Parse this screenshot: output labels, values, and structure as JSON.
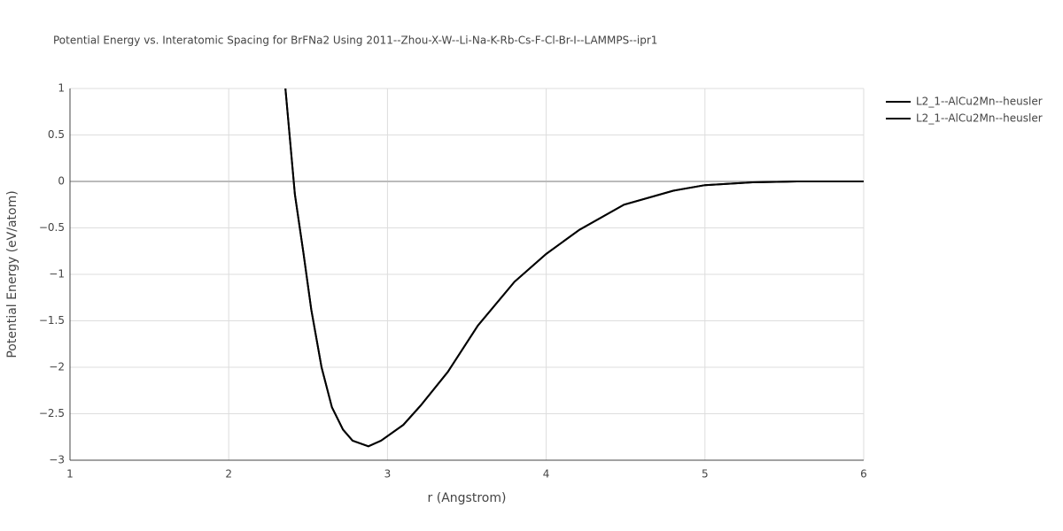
{
  "chart_data": {
    "type": "line",
    "title": "Potential Energy vs. Interatomic Spacing for BrFNa2 Using 2011--Zhou-X-W--Li-Na-K-Rb-Cs-F-Cl-Br-I--LAMMPS--ipr1",
    "x_label": "r (Angstrom)",
    "y_label": "Potential Energy (eV/atom)",
    "x": [
      2.357,
      2.417,
      2.47,
      2.52,
      2.585,
      2.65,
      2.72,
      2.78,
      2.88,
      2.96,
      3.1,
      3.21,
      3.38,
      3.57,
      3.8,
      4.0,
      4.21,
      4.49,
      4.8,
      5.0,
      5.3,
      5.58,
      6.0
    ],
    "series": [
      {
        "name": "L2_1--AlCu2Mn--heusler",
        "color": "#000000",
        "values": [
          1,
          -0.14,
          -0.76,
          -1.38,
          -2.0,
          -2.43,
          -2.67,
          -2.79,
          -2.85,
          -2.79,
          -2.62,
          -2.41,
          -2.05,
          -1.55,
          -1.08,
          -0.78,
          -0.52,
          -0.25,
          -0.1,
          -0.04,
          -0.01,
          0,
          0
        ]
      },
      {
        "name": "L2_1--AlCu2Mn--heusler",
        "color": "#000000",
        "values": [
          1,
          -0.14,
          -0.76,
          -1.38,
          -2.0,
          -2.43,
          -2.67,
          -2.79,
          -2.85,
          -2.79,
          -2.62,
          -2.41,
          -2.05,
          -1.55,
          -1.08,
          -0.78,
          -0.52,
          -0.25,
          -0.1,
          -0.04,
          -0.01,
          0,
          0
        ]
      }
    ],
    "xlim": [
      1,
      6
    ],
    "ylim": [
      -3,
      1
    ],
    "xticks": [
      1,
      2,
      3,
      4,
      5,
      6
    ],
    "yticks": [
      {
        "value": -3,
        "label": "−3"
      },
      {
        "value": -2.5,
        "label": "−2.5"
      },
      {
        "value": -2,
        "label": "−2"
      },
      {
        "value": -1.5,
        "label": "−1.5"
      },
      {
        "value": -1,
        "label": "−1"
      },
      {
        "value": -0.5,
        "label": "−0.5"
      },
      0,
      0.5,
      1
    ],
    "grid": true,
    "legend": "right"
  }
}
